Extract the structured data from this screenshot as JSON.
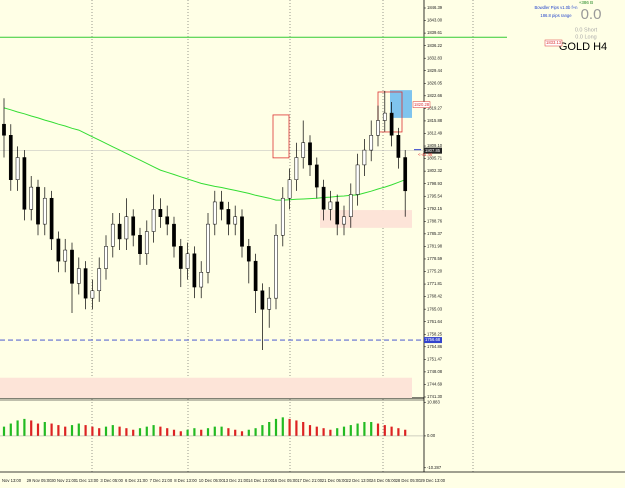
{
  "chart_data": {
    "type": "candlestick",
    "title": "GOLD H4",
    "header": {
      "version": "Bowdler Pips v1.0b f+n",
      "range": "186.8 pips range",
      "points": "+386 B",
      "total": "0.0",
      "short": "0.0 Short",
      "long": "0.0 Long"
    },
    "time_labels": [
      "Nov 13:00",
      "29 Nov 05:00",
      "30 Nov 21:00",
      "1 Dec 13:00",
      "3 Dec 05:00",
      "6 Dec 21:00",
      "7 Dec 21:00",
      "8 Dec 13:00",
      "10 Dec 05:00",
      "13 Dec 21:00",
      "14 Dec 13:00",
      "16 Dec 05:00",
      "17 Dec 21:00",
      "21 Dec 05:00",
      "22 Dec 13:00",
      "24 Dec 05:00",
      "28 Dec 05:00",
      "29 Dec 13:00"
    ],
    "open": [
      1815,
      1812,
      1800,
      1806,
      1792,
      1798,
      1788,
      1795,
      1784,
      1778,
      1781,
      1772,
      1776,
      1768,
      1770,
      1776,
      1782,
      1788,
      1784,
      1790,
      1785,
      1780,
      1786,
      1792,
      1790,
      1788,
      1782,
      1776,
      1780,
      1771,
      1775,
      1788,
      1794,
      1792,
      1788,
      1790,
      1782,
      1778,
      1770,
      1765,
      1768,
      1785,
      1795,
      1800,
      1806,
      1810,
      1804,
      1798,
      1792,
      1794,
      1788,
      1790,
      1796,
      1804,
      1808,
      1812,
      1816,
      1818,
      1812,
      1806
    ],
    "high": [
      1822,
      1815,
      1809,
      1808,
      1801,
      1800,
      1798,
      1797,
      1786,
      1784,
      1783,
      1779,
      1778,
      1773,
      1779,
      1785,
      1791,
      1791,
      1795,
      1792,
      1787,
      1789,
      1796,
      1795,
      1793,
      1790,
      1784,
      1783,
      1782,
      1778,
      1791,
      1797,
      1797,
      1794,
      1793,
      1792,
      1784,
      1780,
      1772,
      1771,
      1788,
      1798,
      1803,
      1810,
      1816,
      1812,
      1806,
      1800,
      1797,
      1796,
      1793,
      1799,
      1807,
      1811,
      1816,
      1820,
      1824,
      1821,
      1814,
      1808
    ],
    "low": [
      1806,
      1797,
      1797,
      1789,
      1789,
      1785,
      1785,
      1781,
      1775,
      1775,
      1764,
      1769,
      1765,
      1765,
      1767,
      1773,
      1779,
      1781,
      1781,
      1782,
      1777,
      1777,
      1783,
      1787,
      1785,
      1779,
      1771,
      1773,
      1768,
      1768,
      1772,
      1785,
      1789,
      1785,
      1785,
      1779,
      1772,
      1764,
      1754,
      1760,
      1765,
      1782,
      1792,
      1797,
      1803,
      1801,
      1795,
      1789,
      1789,
      1785,
      1785,
      1787,
      1793,
      1801,
      1805,
      1809,
      1813,
      1809,
      1803,
      1790
    ],
    "close": [
      1812,
      1800,
      1806,
      1792,
      1798,
      1788,
      1795,
      1784,
      1778,
      1781,
      1772,
      1776,
      1768,
      1770,
      1776,
      1782,
      1788,
      1784,
      1790,
      1785,
      1780,
      1786,
      1792,
      1790,
      1788,
      1782,
      1776,
      1780,
      1771,
      1775,
      1788,
      1794,
      1792,
      1788,
      1790,
      1782,
      1778,
      1770,
      1765,
      1768,
      1785,
      1795,
      1800,
      1806,
      1810,
      1804,
      1798,
      1792,
      1794,
      1788,
      1790,
      1796,
      1804,
      1808,
      1812,
      1816,
      1818,
      1812,
      1806,
      1797
    ],
    "ma": [
      1819.4,
      1818.9,
      1818.3,
      1817.8,
      1817.2,
      1816.7,
      1816.1,
      1815.6,
      1815,
      1814.5,
      1813.9,
      1813.4,
      1812.5,
      1811.6,
      1810.7,
      1809.8,
      1808.9,
      1808,
      1807.1,
      1806.2,
      1805.3,
      1804.4,
      1803.5,
      1802.6,
      1802,
      1801.4,
      1800.8,
      1800.2,
      1799.6,
      1799,
      1798.6,
      1798.2,
      1797.9,
      1797.5,
      1797.1,
      1796.7,
      1796.3,
      1795.8,
      1795.4,
      1795,
      1794.5,
      1794.5,
      1794.6,
      1794.7,
      1794.8,
      1794.9,
      1795,
      1795.2,
      1795.3,
      1795.5,
      1795.6,
      1795.8,
      1795.9,
      1796.4,
      1796.9,
      1797.5,
      1798,
      1798.6,
      1799.3,
      1800
    ],
    "ma_color": "#33dd33",
    "osc": [
      3,
      4,
      5,
      5.5,
      5,
      4,
      4.5,
      4,
      3.5,
      3,
      3.5,
      4,
      3.5,
      3,
      2.5,
      3,
      3.5,
      3,
      2.5,
      2,
      2.5,
      3,
      3.5,
      3,
      2.5,
      2,
      1.5,
      2,
      2.5,
      2,
      2.5,
      3,
      3,
      2.5,
      2,
      1.5,
      2,
      2.5,
      3.5,
      4.5,
      5.5,
      6,
      5.5,
      5,
      4.5,
      3.5,
      3,
      2.5,
      2,
      2.5,
      3,
      3.5,
      4,
      4.5,
      4.5,
      4,
      3.5,
      3,
      2.5,
      2
    ],
    "osc_colors": [
      "#22bb22",
      "#dd2222"
    ],
    "ylim": [
      1741.03,
      1848.55
    ],
    "yticks": [
      {
        "value": 1741.3,
        "label": "1741.30"
      },
      1744.69,
      1748.08,
      1751.47,
      1754.86,
      1758.25,
      1761.64,
      1765.03,
      1768.42,
      1771.81,
      {
        "value": 1775.2,
        "label": "1775.20"
      },
      1778.59,
      1781.98,
      1785.37,
      1788.76,
      1792.15,
      1795.54,
      1798.93,
      1802.32,
      1805.71,
      {
        "value": 1809.1,
        "label": "1809.10"
      },
      1812.49,
      1815.88,
      1819.27,
      1822.66,
      1826.05,
      1829.44,
      1832.83,
      1836.22,
      1839.61,
      {
        "value": 1843,
        "label": "1843.00"
      },
      1846.39
    ],
    "osc_ylim": [
      -11,
      11.6
    ],
    "osc_yticks": [
      10.883,
      {
        "value": 0,
        "label": "0.00"
      },
      -10.287
    ],
    "green_line": 1838.5,
    "blue_line": 1756.68,
    "current_price": 1807.85,
    "zones": [
      [
        1791.8,
        1787.0
      ],
      [
        1746.5,
        1741.03
      ]
    ],
    "red_boxes": [
      [
        1817.5,
        1805.9
      ],
      [
        1823.7,
        1812.9
      ]
    ],
    "blue_box": [
      1824.2,
      1816.7
    ],
    "target_label": "1820.28",
    "distance_label": "<-41.46",
    "level_label": "1833.13"
  }
}
